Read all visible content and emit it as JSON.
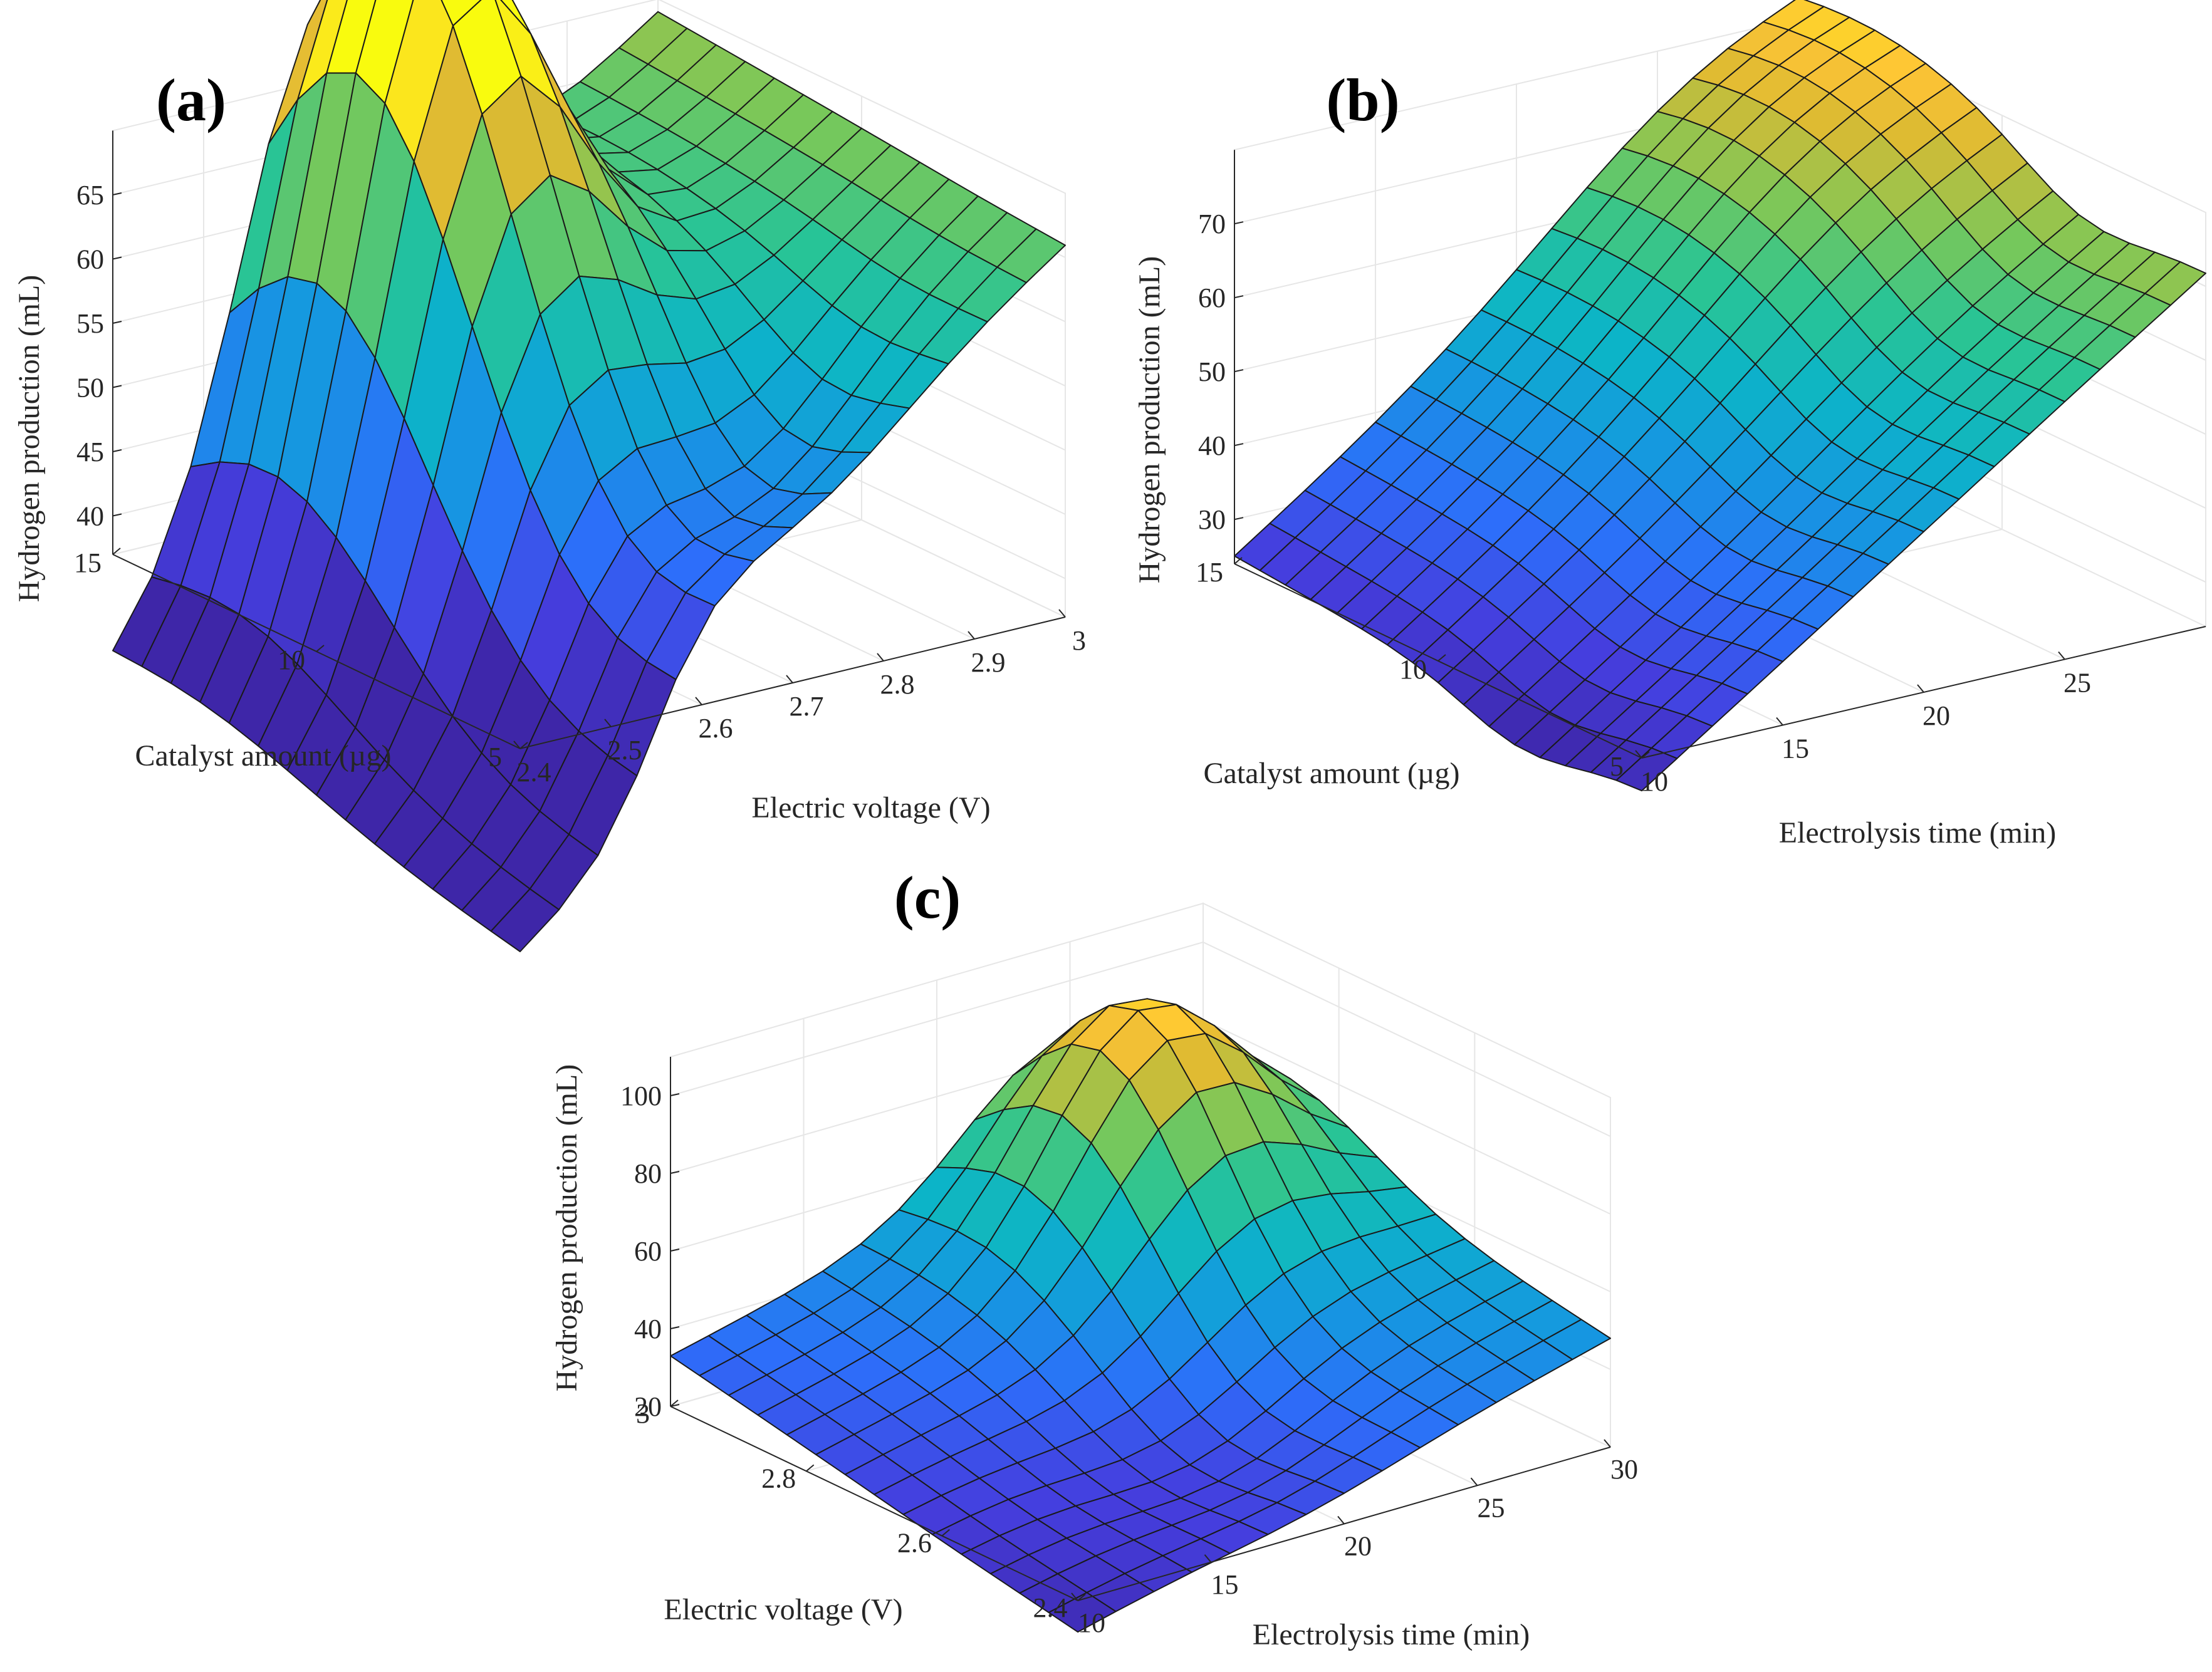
{
  "chart_data": [
    {
      "type": "surface",
      "panel": "(a)",
      "zlabel": "Hydrogen production (mL)",
      "xlabel": "Electric voltage (V)",
      "ylabel": "Catalyst amount (µg)",
      "x_ticks": [
        "2.4",
        "2.5",
        "2.6",
        "2.7",
        "2.8",
        "2.9",
        "3"
      ],
      "y_ticks": [
        "5",
        "10",
        "15"
      ],
      "z_ticks": [
        "40",
        "45",
        "50",
        "55",
        "60",
        "65"
      ],
      "xlim": [
        2.4,
        3.0
      ],
      "ylim": [
        5,
        15
      ],
      "zlim": [
        37,
        70
      ],
      "corners": {
        "v2.4_c5": 37,
        "v3.0_c5": 66,
        "v2.4_c15": 39,
        "v3.0_c15": 69
      },
      "peak": {
        "voltage": 2.6,
        "catalyst": 13,
        "value": 76
      }
    },
    {
      "type": "surface",
      "panel": "(b)",
      "zlabel": "Hydrogen production (mL)",
      "xlabel": "Electrolysis time (min)",
      "ylabel": "Catalyst amount (µg)",
      "x_ticks": [
        "10",
        "15",
        "20",
        "25"
      ],
      "y_ticks": [
        "5",
        "10",
        "15"
      ],
      "z_ticks": [
        "30",
        "40",
        "50",
        "60",
        "70"
      ],
      "xlim": [
        10,
        30
      ],
      "ylim": [
        5,
        15
      ],
      "zlim": [
        24,
        80
      ],
      "corners": {
        "t10_c5": 20,
        "t30_c5": 72,
        "t10_c15": 25,
        "t30_c15": 77
      },
      "peak": {
        "time": 25,
        "catalyst": 13,
        "value": 86
      }
    },
    {
      "type": "surface",
      "panel": "(c)",
      "zlabel": "Hydrogen production (mL)",
      "xlabel": "Electrolysis time (min)",
      "ylabel": "Electric voltage (V)",
      "x_ticks": [
        "10",
        "15",
        "20",
        "25",
        "30"
      ],
      "y_ticks": [
        "2.4",
        "2.6",
        "2.8",
        "3"
      ],
      "z_ticks": [
        "20",
        "40",
        "60",
        "80",
        "100"
      ],
      "xlim": [
        10,
        30
      ],
      "ylim": [
        2.4,
        3.0
      ],
      "zlim": [
        20,
        110
      ],
      "corners": {
        "t10_v2.4": 12,
        "t30_v2.4": 48,
        "t10_v3.0": 33,
        "t30_v3.0": 66
      },
      "peak": {
        "time": 25,
        "voltage": 2.9,
        "value": 107
      }
    }
  ]
}
